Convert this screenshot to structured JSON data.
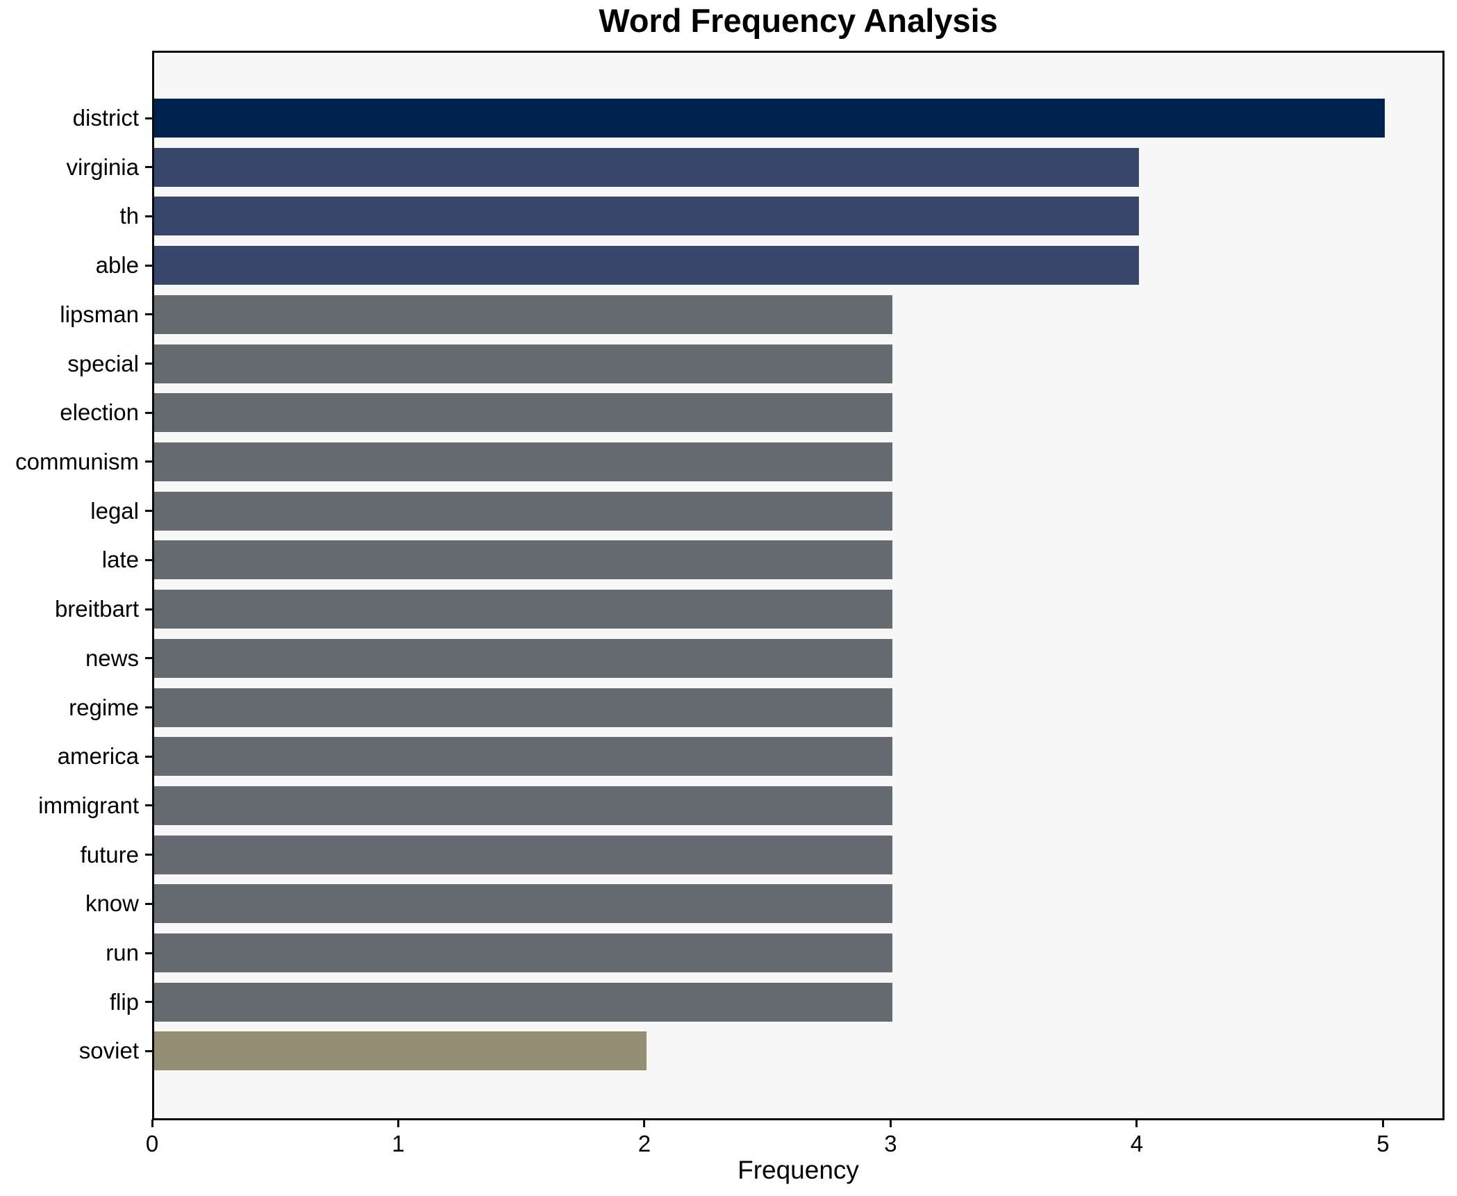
{
  "chart_data": {
    "type": "bar",
    "orientation": "horizontal",
    "title": "Word Frequency Analysis",
    "xlabel": "Frequency",
    "ylabel": "",
    "categories": [
      "district",
      "virginia",
      "th",
      "able",
      "lipsman",
      "special",
      "election",
      "communism",
      "legal",
      "late",
      "breitbart",
      "news",
      "regime",
      "america",
      "immigrant",
      "future",
      "know",
      "run",
      "flip",
      "soviet"
    ],
    "values": [
      5,
      4,
      4,
      4,
      3,
      3,
      3,
      3,
      3,
      3,
      3,
      3,
      3,
      3,
      3,
      3,
      3,
      3,
      3,
      2
    ],
    "bar_colors": [
      "#00224e",
      "#38466c",
      "#38466c",
      "#38466c",
      "#666a71",
      "#666a71",
      "#666a71",
      "#666a71",
      "#666a71",
      "#666a71",
      "#666a71",
      "#666a71",
      "#666a71",
      "#666a71",
      "#666a71",
      "#666a71",
      "#666a71",
      "#666a71",
      "#666a71",
      "#948e74"
    ],
    "xticks": [
      0,
      1,
      2,
      3,
      4,
      5
    ],
    "xlim": [
      0,
      5.25
    ],
    "grid": false,
    "legend": "none",
    "colors": {
      "plot_background": "#f7f7f7",
      "figure_background": "#ffffff",
      "spine": "#0a0a0a",
      "text": "#000000"
    }
  }
}
